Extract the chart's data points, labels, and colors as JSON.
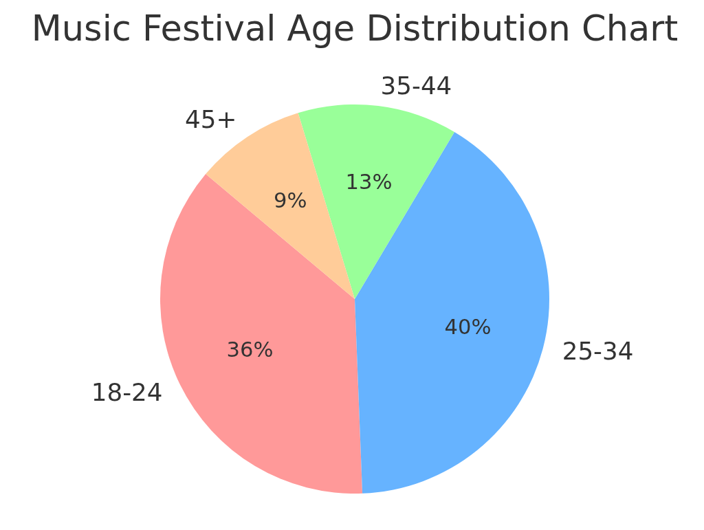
{
  "chart_data": {
    "type": "pie",
    "title": "Music Festival Age Distribution Chart",
    "categories": [
      "18-24",
      "25-34",
      "35-44",
      "45+"
    ],
    "values": [
      36,
      40,
      13,
      9
    ],
    "value_labels": [
      "36%",
      "40%",
      "13%",
      "9%"
    ],
    "colors": [
      "#ff9999",
      "#66b3ff",
      "#99ff99",
      "#ffcc99"
    ]
  }
}
